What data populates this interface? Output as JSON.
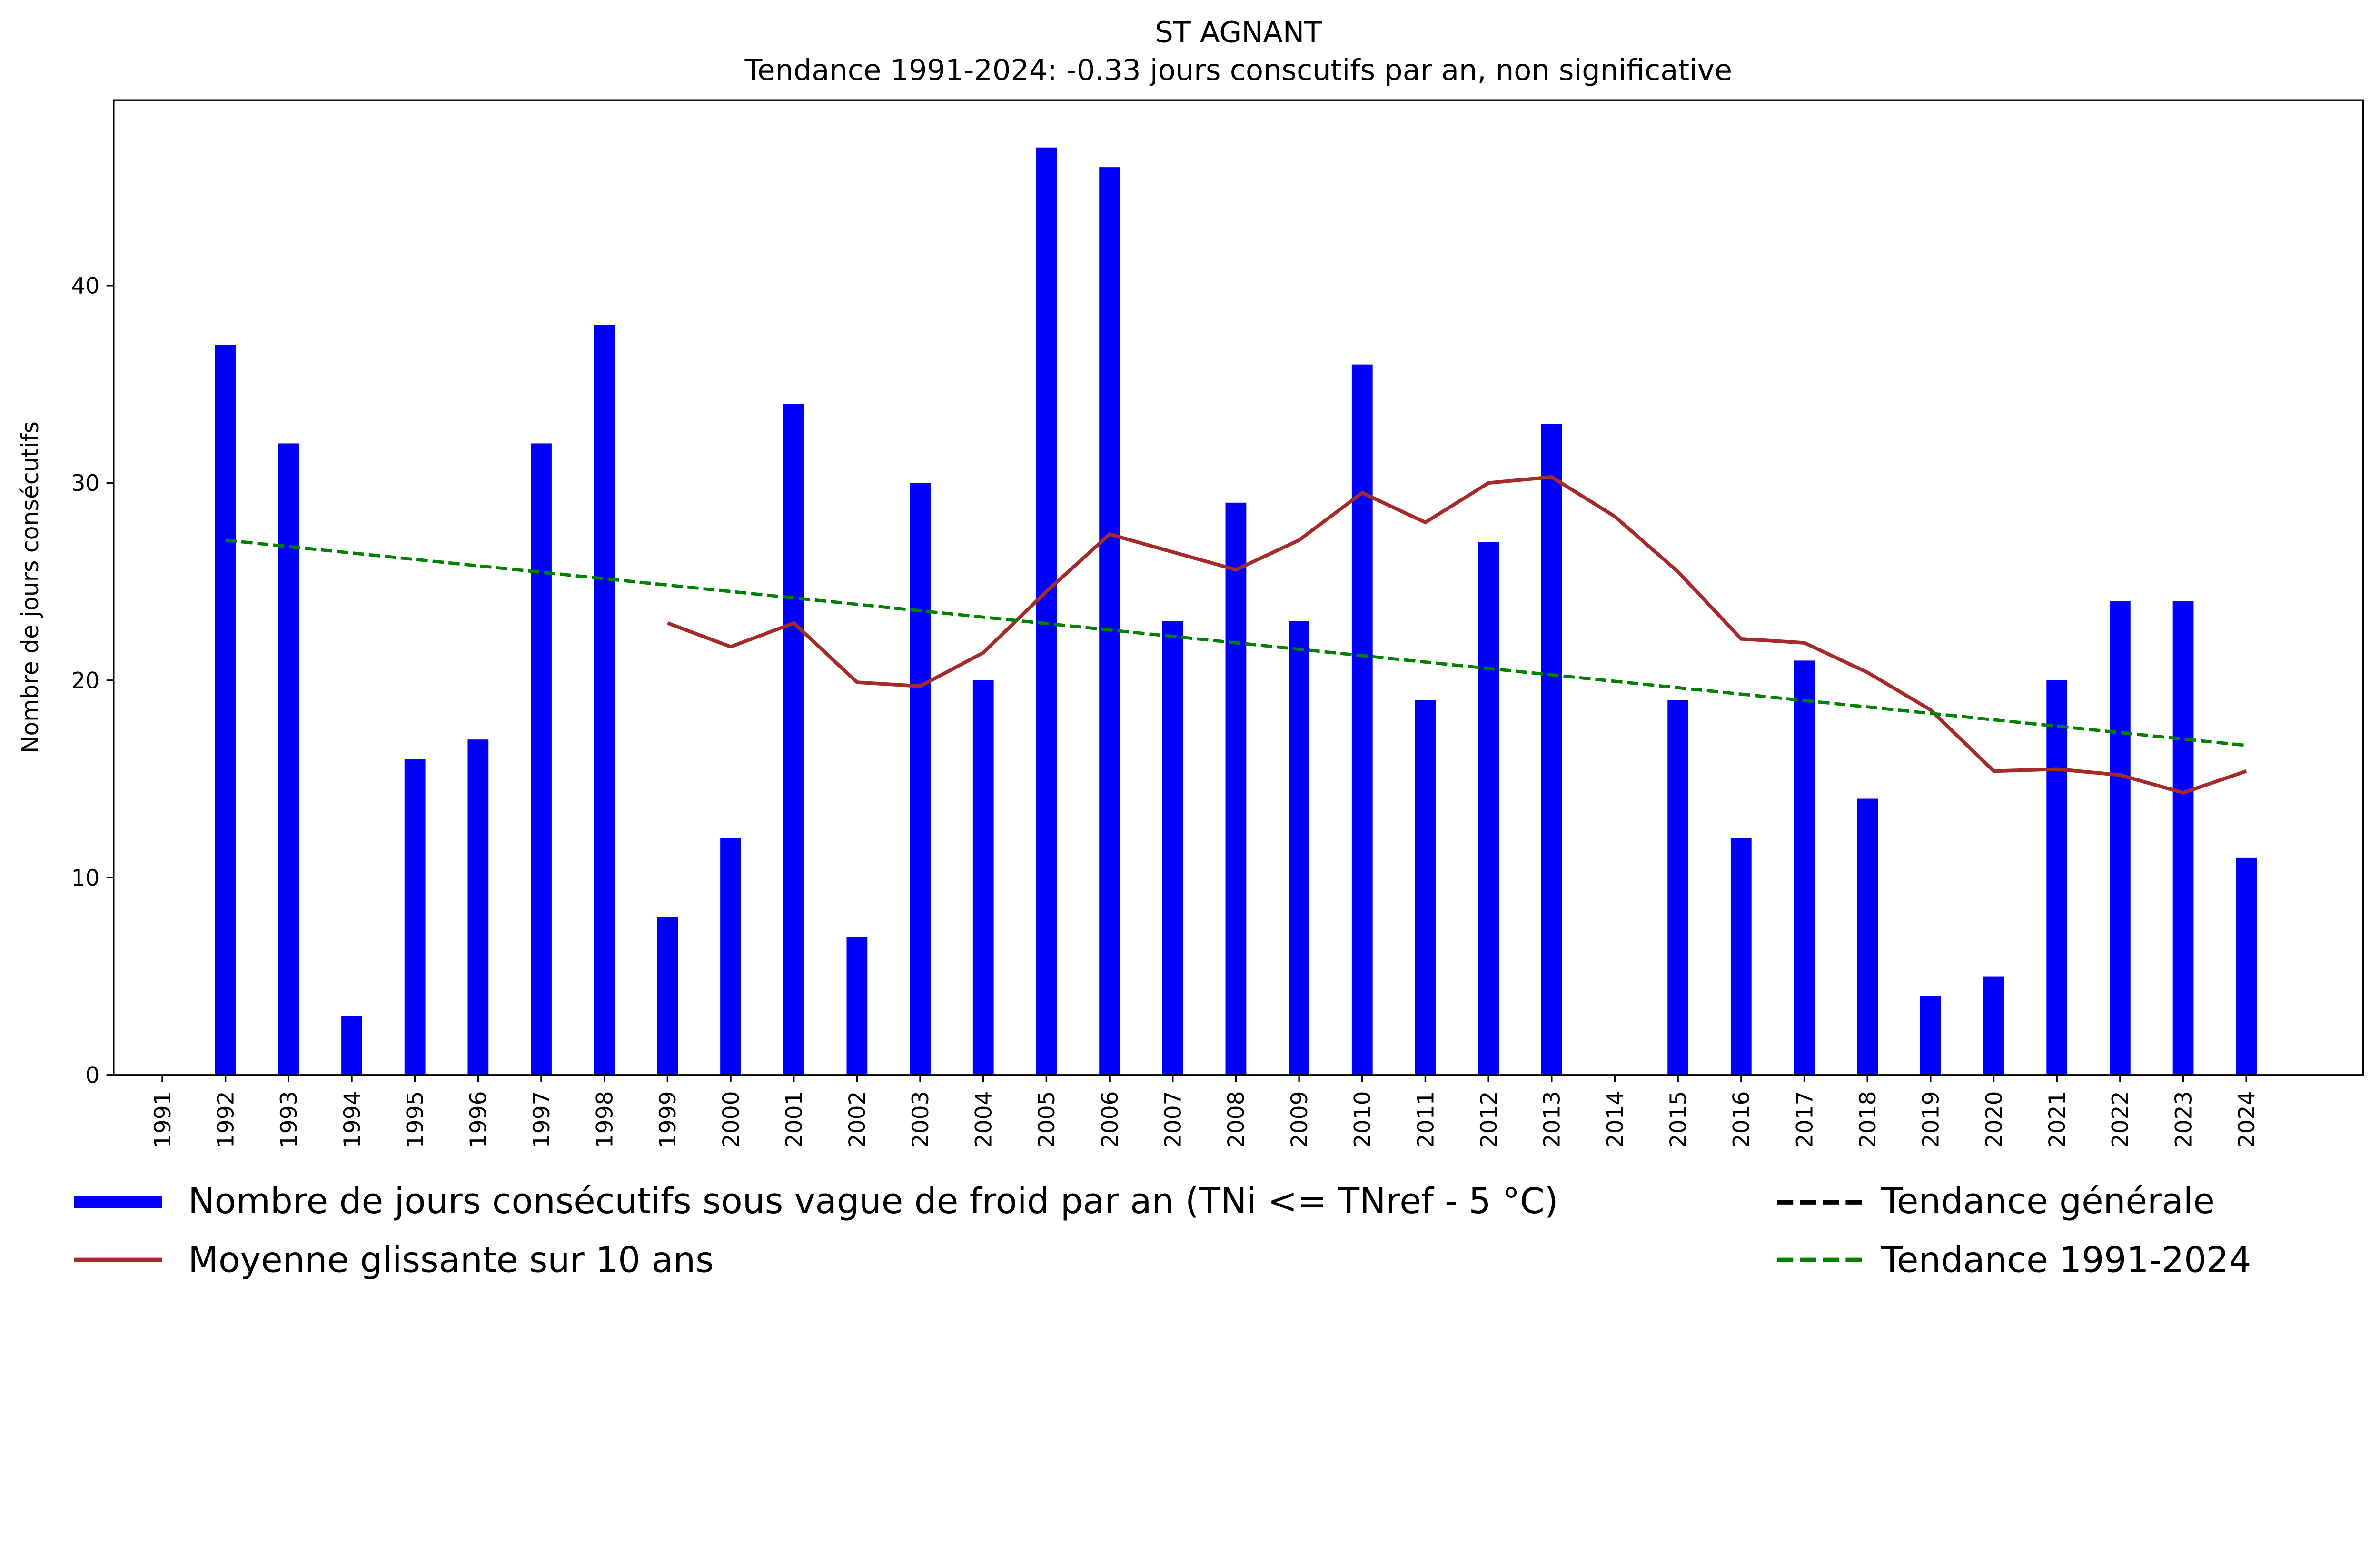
{
  "chart_data": {
    "type": "bar",
    "title": "ST AGNANT",
    "subtitle": "Tendance 1991-2024: -0.33 jours conscutifs par an, non significative",
    "xlabel": "",
    "ylabel": "Nombre de jours consécutifs",
    "ylim": [
      0,
      49.4
    ],
    "xlim": [
      1990.23,
      2025.85
    ],
    "yticks": [
      0,
      10,
      20,
      30,
      40
    ],
    "grid": false,
    "categories": [
      "1991",
      "1992",
      "1993",
      "1994",
      "1995",
      "1996",
      "1997",
      "1998",
      "1999",
      "2000",
      "2001",
      "2002",
      "2003",
      "2004",
      "2005",
      "2006",
      "2007",
      "2008",
      "2009",
      "2010",
      "2011",
      "2012",
      "2013",
      "2014",
      "2015",
      "2016",
      "2017",
      "2018",
      "2019",
      "2020",
      "2021",
      "2022",
      "2023",
      "2024"
    ],
    "series": [
      {
        "name": "Nombre de jours consécutifs sous vague de froid par an (TNi <= TNref - 5 °C)",
        "type": "bar",
        "color": "#0000ff",
        "values": [
          0,
          37,
          32,
          3,
          16,
          17,
          32,
          38,
          8,
          12,
          34,
          7,
          30,
          20,
          47,
          46,
          23,
          29,
          23,
          36,
          19,
          27,
          33,
          0,
          19,
          12,
          21,
          14,
          4,
          5,
          20,
          24,
          24,
          11
        ]
      },
      {
        "name": "Moyenne glissante sur 10 ans",
        "type": "line",
        "color": "#a52a2a",
        "x": [
          1999,
          2000,
          2001,
          2002,
          2003,
          2004,
          2005,
          2006,
          2007,
          2008,
          2009,
          2010,
          2011,
          2012,
          2013,
          2014,
          2015,
          2016,
          2017,
          2018,
          2019,
          2020,
          2021,
          2022,
          2023,
          2024
        ],
        "values": [
          22.9,
          21.7,
          22.9,
          19.9,
          19.7,
          21.4,
          24.5,
          27.4,
          26.5,
          25.6,
          27.1,
          29.5,
          28.0,
          30.0,
          30.3,
          28.3,
          25.5,
          22.1,
          21.9,
          20.4,
          18.5,
          15.4,
          15.5,
          15.2,
          14.3,
          15.4
        ]
      },
      {
        "name": "Tendance générale",
        "type": "line",
        "dash": true,
        "color": "#000000",
        "x": [],
        "values": []
      },
      {
        "name": "Tendance 1991-2024",
        "type": "line",
        "dash": true,
        "color": "#008000",
        "x": [
          1992,
          2024
        ],
        "values": [
          27.1,
          16.7
        ]
      }
    ],
    "legend": {
      "placement": "bottom",
      "entries": [
        "Nombre de jours consécutifs sous vague de froid par an (TNi <= TNref - 5 °C)",
        "Moyenne glissante sur 10 ans",
        "Tendance générale",
        "Tendance 1991-2024"
      ]
    }
  }
}
